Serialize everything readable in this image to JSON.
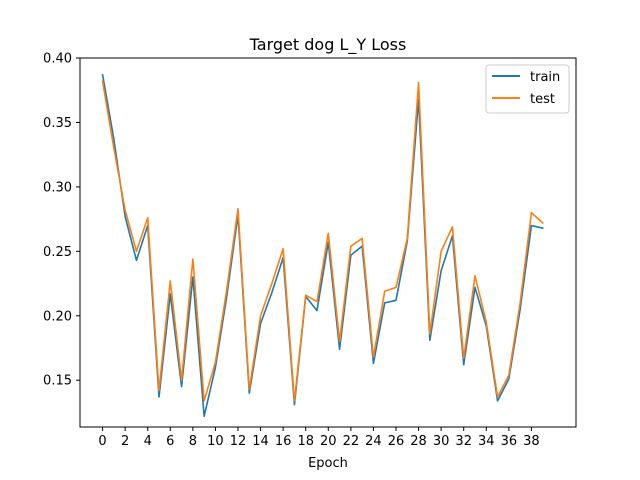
{
  "chart_data": {
    "type": "line",
    "title": "Target dog L_Y Loss",
    "xlabel": "Epoch",
    "ylabel": "",
    "xlim": [
      -2,
      41.95
    ],
    "ylim": [
      0.1137,
      0.4
    ],
    "x_ticks": [
      0,
      2,
      4,
      6,
      8,
      10,
      12,
      14,
      16,
      18,
      20,
      22,
      24,
      26,
      28,
      30,
      32,
      34,
      36,
      38
    ],
    "y_ticks": [
      0.15,
      0.2,
      0.25,
      0.3,
      0.35,
      0.4
    ],
    "y_tick_labels": [
      "0.15",
      "0.20",
      "0.25",
      "0.30",
      "0.35",
      "0.40"
    ],
    "grid": false,
    "legend_position": "top-right",
    "x": [
      0,
      1,
      2,
      3,
      4,
      5,
      6,
      7,
      8,
      9,
      10,
      11,
      12,
      13,
      14,
      15,
      16,
      17,
      18,
      19,
      20,
      21,
      22,
      23,
      24,
      25,
      26,
      27,
      28,
      29,
      30,
      31,
      32,
      33,
      34,
      35,
      36,
      37,
      38,
      39
    ],
    "series": [
      {
        "name": "train",
        "color": "#1f77b4",
        "values": [
          0.387,
          0.337,
          0.277,
          0.243,
          0.27,
          0.137,
          0.217,
          0.145,
          0.23,
          0.122,
          0.16,
          0.215,
          0.278,
          0.14,
          0.194,
          0.218,
          0.245,
          0.131,
          0.215,
          0.204,
          0.257,
          0.174,
          0.247,
          0.254,
          0.163,
          0.21,
          0.212,
          0.258,
          0.368,
          0.181,
          0.235,
          0.262,
          0.162,
          0.222,
          0.192,
          0.134,
          0.151,
          0.205,
          0.27,
          0.268
        ]
      },
      {
        "name": "test",
        "color": "#ff7f0e",
        "values": [
          0.382,
          0.33,
          0.282,
          0.25,
          0.276,
          0.142,
          0.227,
          0.15,
          0.244,
          0.134,
          0.164,
          0.22,
          0.283,
          0.143,
          0.2,
          0.225,
          0.252,
          0.134,
          0.216,
          0.211,
          0.264,
          0.18,
          0.254,
          0.26,
          0.168,
          0.219,
          0.222,
          0.26,
          0.381,
          0.186,
          0.25,
          0.269,
          0.167,
          0.231,
          0.195,
          0.137,
          0.154,
          0.21,
          0.28,
          0.272
        ]
      }
    ]
  }
}
